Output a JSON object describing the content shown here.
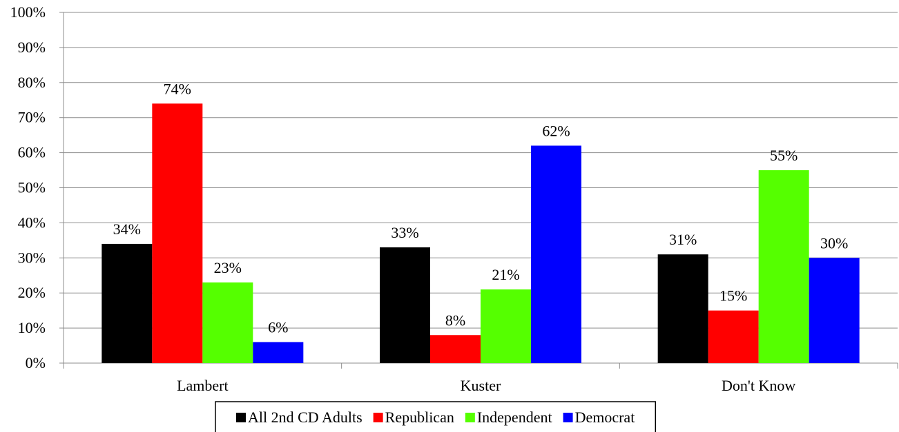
{
  "chart_data": {
    "type": "bar",
    "categories": [
      "Lambert",
      "Kuster",
      "Don't Know"
    ],
    "series": [
      {
        "name": "All 2nd CD Adults",
        "color": "#000000",
        "values": [
          34,
          33,
          31
        ]
      },
      {
        "name": "Republican",
        "color": "#ff0000",
        "values": [
          74,
          8,
          15
        ]
      },
      {
        "name": "Independent",
        "color": "#55ff00",
        "values": [
          23,
          21,
          55
        ]
      },
      {
        "name": "Democrat",
        "color": "#0000ff",
        "values": [
          6,
          62,
          30
        ]
      }
    ],
    "ylim": [
      0,
      100
    ],
    "ytick_step": 10,
    "y_tick_suffix": "%",
    "value_label_suffix": "%",
    "grid": true,
    "legend_position": "bottom"
  }
}
